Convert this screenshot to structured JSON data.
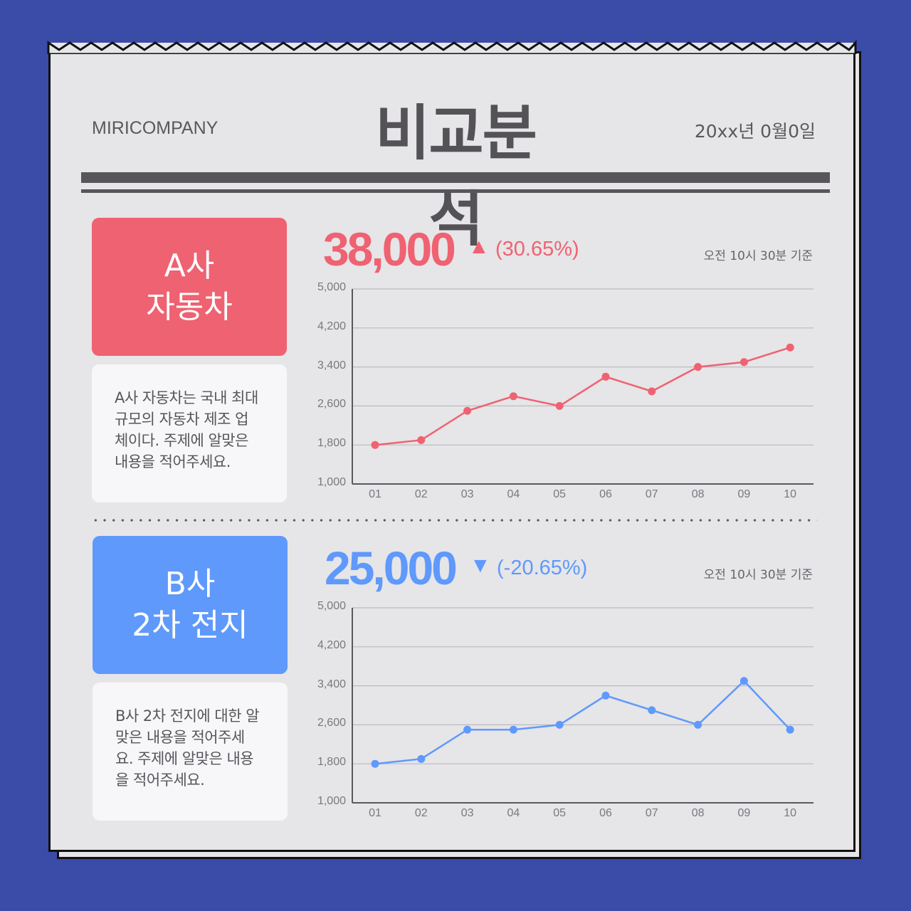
{
  "header": {
    "company": "MIRICOMPANY",
    "title": "비교분석",
    "date": "20xx년 0월0일"
  },
  "colors": {
    "background": "#3a4ba8",
    "paper": "#e6e5e8",
    "a_accent": "#ef6272",
    "b_accent": "#5f99fb",
    "text": "#545257"
  },
  "sections": [
    {
      "card_line1": "A사",
      "card_line2": "자동차",
      "description_lines": [
        "A사 자동차는 국내 최대",
        "규모의 자동차 제조 업",
        "체이다. 주제에 알맞은",
        "내용을 적어주세요."
      ],
      "value": "38,000",
      "trend_icon": "triangle-up-icon",
      "trend_glyph": "▲",
      "change": "(30.65%)",
      "basis": "오전 10시 30분 기준"
    },
    {
      "card_line1": "B사",
      "card_line2": "2차 전지",
      "description_lines": [
        "B사 2차 전지에 대한 알",
        "맞은 내용을 적어주세",
        "요. 주제에 알맞은 내용",
        "을 적어주세요."
      ],
      "value": "25,000",
      "trend_icon": "triangle-down-icon",
      "trend_glyph": "▼",
      "change": "(-20.65%)",
      "basis": "오전 10시 30분 기준"
    }
  ],
  "chart_data": [
    {
      "type": "line",
      "title": "A사 자동차",
      "categories": [
        "01",
        "02",
        "03",
        "04",
        "05",
        "06",
        "07",
        "08",
        "09",
        "10"
      ],
      "series": [
        {
          "name": "A사",
          "color": "#ef6272",
          "values": [
            1800,
            1900,
            2500,
            2800,
            2600,
            3200,
            2900,
            3400,
            3500,
            3800
          ]
        }
      ],
      "yticks": [
        "5,000",
        "4,200",
        "3,400",
        "2,600",
        "1,800",
        "1,000"
      ],
      "ylim": [
        1000,
        5000
      ],
      "xlabel": "",
      "ylabel": "",
      "grid": true
    },
    {
      "type": "line",
      "title": "B사 2차 전지",
      "categories": [
        "01",
        "02",
        "03",
        "04",
        "05",
        "06",
        "07",
        "08",
        "09",
        "10"
      ],
      "series": [
        {
          "name": "B사",
          "color": "#5f99fb",
          "values": [
            1800,
            1900,
            2500,
            2500,
            2600,
            3200,
            2900,
            2600,
            3500,
            2500
          ]
        }
      ],
      "yticks": [
        "5,000",
        "4,200",
        "3,400",
        "2,600",
        "1,800",
        "1,000"
      ],
      "ylim": [
        1000,
        5000
      ],
      "xlabel": "",
      "ylabel": "",
      "grid": true
    }
  ]
}
